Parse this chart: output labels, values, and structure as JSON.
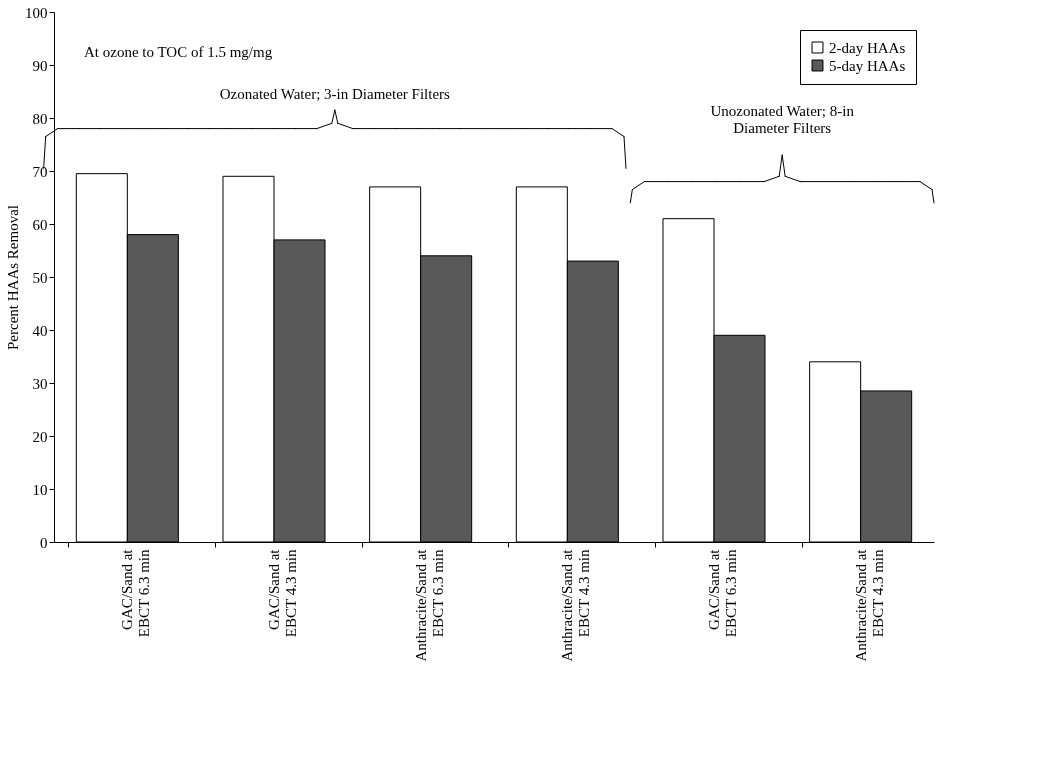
{
  "chart_data": {
    "type": "bar",
    "ylabel": "Percent HAAs Removal",
    "categories": [
      "GAC/Sand at\nEBCT 6.3 min",
      "GAC/Sand at\nEBCT 4.3 min",
      "Anthracite/Sand at\nEBCT 6.3 min",
      "Anthracite/Sand at\nEBCT 4.3 min",
      "GAC/Sand at\nEBCT 6.3 min",
      "Anthracite/Sand at\nEBCT 4.3 min"
    ],
    "series": [
      {
        "name": "2-day HAAs",
        "color": "#ffffff",
        "values": [
          69.5,
          69,
          67,
          67,
          61,
          34
        ]
      },
      {
        "name": "5-day HAAs",
        "color": "#595959",
        "values": [
          58,
          57,
          54,
          53,
          39,
          28.5
        ]
      }
    ],
    "ylim": [
      0,
      100
    ],
    "yticks": [
      0,
      10,
      20,
      30,
      40,
      50,
      60,
      70,
      80,
      90,
      100
    ],
    "annotations": [
      "At ozone to TOC of 1.5 mg/mg",
      "Ozonated Water; 3-in Diameter Filters",
      "Unozonated Water; 8-in\nDiameter Filters"
    ],
    "legend": "top right",
    "grid": false
  }
}
